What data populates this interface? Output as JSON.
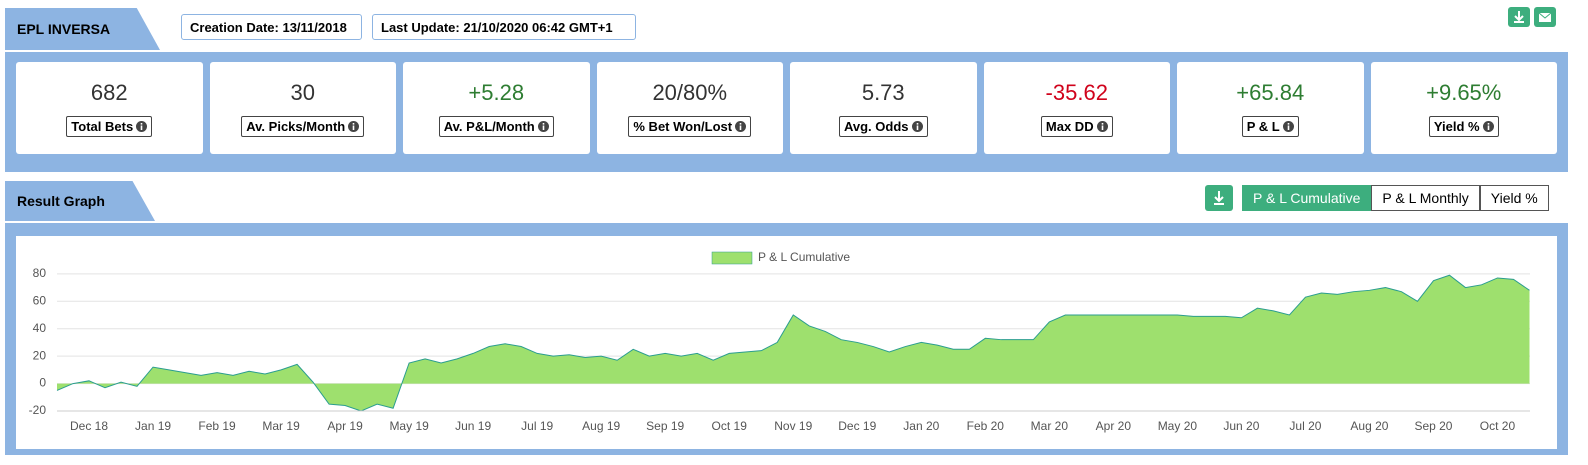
{
  "header": {
    "title": "EPL INVERSA",
    "creation_date": "Creation Date: 13/11/2018",
    "last_update": "Last Update: 21/10/2020 06:42 GMT+1"
  },
  "stats": [
    {
      "value": "682",
      "label": "Total Bets",
      "color": "#333333"
    },
    {
      "value": "30",
      "label": "Av. Picks/Month",
      "color": "#333333"
    },
    {
      "value": "+5.28",
      "label": "Av. P&L/Month",
      "color": "#2e7d32"
    },
    {
      "value": "20/80%",
      "label": "% Bet Won/Lost",
      "color": "#333333"
    },
    {
      "value": "5.73",
      "label": "Avg. Odds",
      "color": "#333333"
    },
    {
      "value": "-35.62",
      "label": "Max DD",
      "color": "#d0021b"
    },
    {
      "value": "+65.84",
      "label": "P & L",
      "color": "#2e7d32"
    },
    {
      "value": "+9.65%",
      "label": "Yield %",
      "color": "#2e7d32"
    }
  ],
  "section_title": "Result Graph",
  "tabs": [
    "P & L Cumulative",
    "P & L Monthly",
    "Yield %"
  ],
  "chart_data": {
    "type": "area",
    "legend": "top",
    "grid": true,
    "ylim": [
      -20,
      85
    ],
    "yticks": [
      -20,
      0,
      20,
      40,
      60,
      80
    ],
    "categories": [
      null,
      null,
      "Dec 18",
      null,
      null,
      null,
      "Jan 19",
      null,
      null,
      null,
      "Feb 19",
      null,
      null,
      null,
      "Mar 19",
      null,
      null,
      null,
      "Apr 19",
      null,
      null,
      null,
      "May 19",
      null,
      null,
      null,
      "Jun 19",
      null,
      null,
      null,
      "Jul 19",
      null,
      null,
      null,
      "Aug 19",
      null,
      null,
      null,
      "Sep 19",
      null,
      null,
      null,
      "Oct 19",
      null,
      null,
      null,
      "Nov 19",
      null,
      null,
      null,
      "Dec 19",
      null,
      null,
      null,
      "Jan 20",
      null,
      null,
      null,
      "Feb 20",
      null,
      null,
      null,
      "Mar 20",
      null,
      null,
      null,
      "Apr 20",
      null,
      null,
      null,
      "May 20",
      null,
      null,
      null,
      "Jun 20",
      null,
      null,
      null,
      "Jul 20",
      null,
      null,
      null,
      "Aug 20",
      null,
      null,
      null,
      "Sep 20",
      null,
      null,
      null,
      "Oct 20",
      null,
      null
    ],
    "series": [
      {
        "name": "P & L Cumulative",
        "color": "#9ee06e",
        "line_color": "#2a9d8f",
        "values": [
          -5,
          0,
          2,
          -3,
          1,
          -2,
          12,
          10,
          8,
          6,
          8,
          6,
          9,
          7,
          10,
          14,
          1,
          -15,
          -16,
          -20,
          -15,
          -18,
          15,
          18,
          15,
          18,
          22,
          27,
          29,
          27,
          22,
          20,
          21,
          19,
          20,
          17,
          25,
          20,
          22,
          20,
          22,
          17,
          22,
          23,
          24,
          30,
          50,
          42,
          38,
          32,
          30,
          27,
          23,
          27,
          30,
          28,
          25,
          25,
          33,
          32,
          32,
          32,
          45,
          50,
          50,
          50,
          50,
          50,
          50,
          50,
          50,
          49,
          49,
          49,
          48,
          55,
          53,
          50,
          63,
          66,
          65,
          67,
          68,
          70,
          67,
          60,
          75,
          79,
          70,
          72,
          77,
          76,
          68
        ]
      }
    ]
  }
}
